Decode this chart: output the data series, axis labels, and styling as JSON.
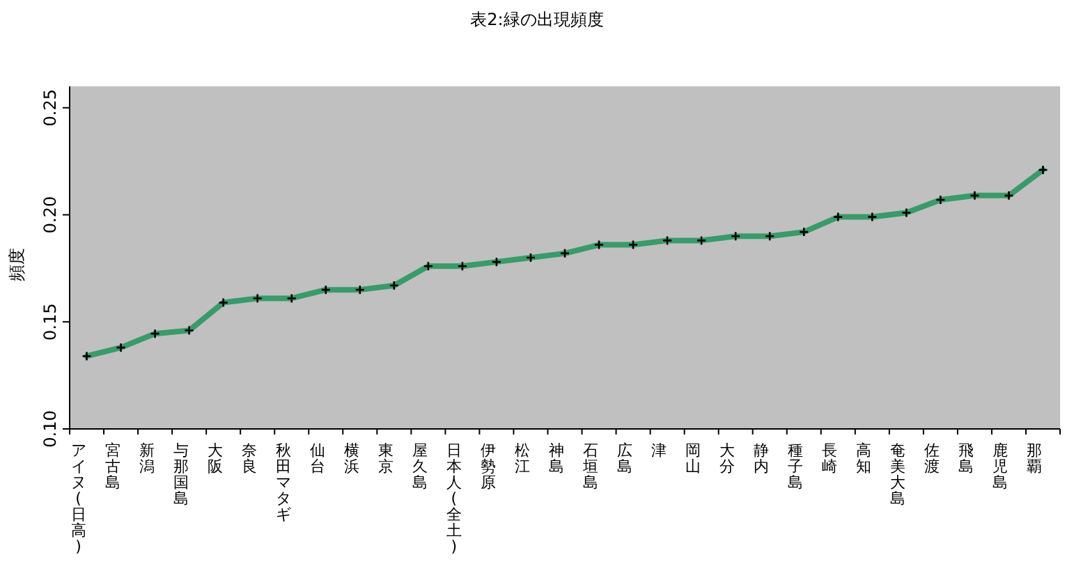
{
  "chart_data": {
    "type": "line",
    "title": "表2:緑の出現頻度",
    "ylabel": "頻度",
    "categories": [
      "アイヌ(日高)",
      "宮古島",
      "新潟",
      "与那国島",
      "大阪",
      "奈良",
      "秋田マタギ",
      "仙台",
      "横浜",
      "東京",
      "屋久島",
      "日本人(全土)",
      "伊勢原",
      "松江",
      "神島",
      "石垣島",
      "広島",
      "津",
      "岡山",
      "大分",
      "静内",
      "種子島",
      "長崎",
      "高知",
      "奄美大島",
      "佐渡",
      "飛島",
      "鹿児島",
      "那覇"
    ],
    "series": [
      {
        "color": "#3a9a6a",
        "values": [
          0.134,
          0.138,
          0.1445,
          0.146,
          0.159,
          0.161,
          0.161,
          0.165,
          0.165,
          0.167,
          0.176,
          0.176,
          0.178,
          0.18,
          0.182,
          0.186,
          0.186,
          0.188,
          0.188,
          0.19,
          0.19,
          0.192,
          0.199,
          0.199,
          0.201,
          0.207,
          0.209,
          0.209,
          0.221
        ]
      }
    ],
    "ylim": [
      0.1,
      0.26
    ],
    "yticks": [
      {
        "value": 0.1,
        "label": "0.10"
      },
      {
        "value": 0.15,
        "label": "0.15"
      },
      {
        "value": 0.2,
        "label": "0.20"
      },
      {
        "value": 0.25,
        "label": "0.25"
      }
    ],
    "grid": false,
    "marker": "cross",
    "line_style": "solid"
  }
}
